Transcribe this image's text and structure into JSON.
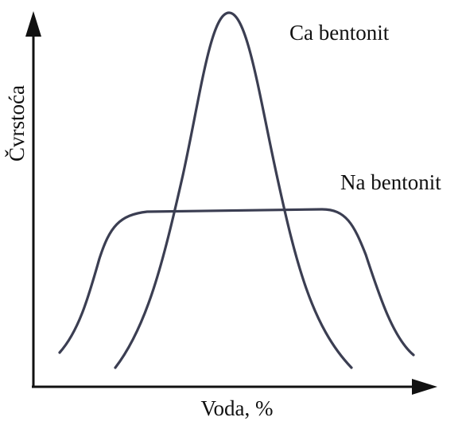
{
  "diagram": {
    "y_axis_label": "Čvrstoća",
    "x_axis_label": "Voda, %",
    "curves": [
      {
        "label": "Ca bentonit"
      },
      {
        "label": "Na bentonit"
      }
    ]
  }
}
